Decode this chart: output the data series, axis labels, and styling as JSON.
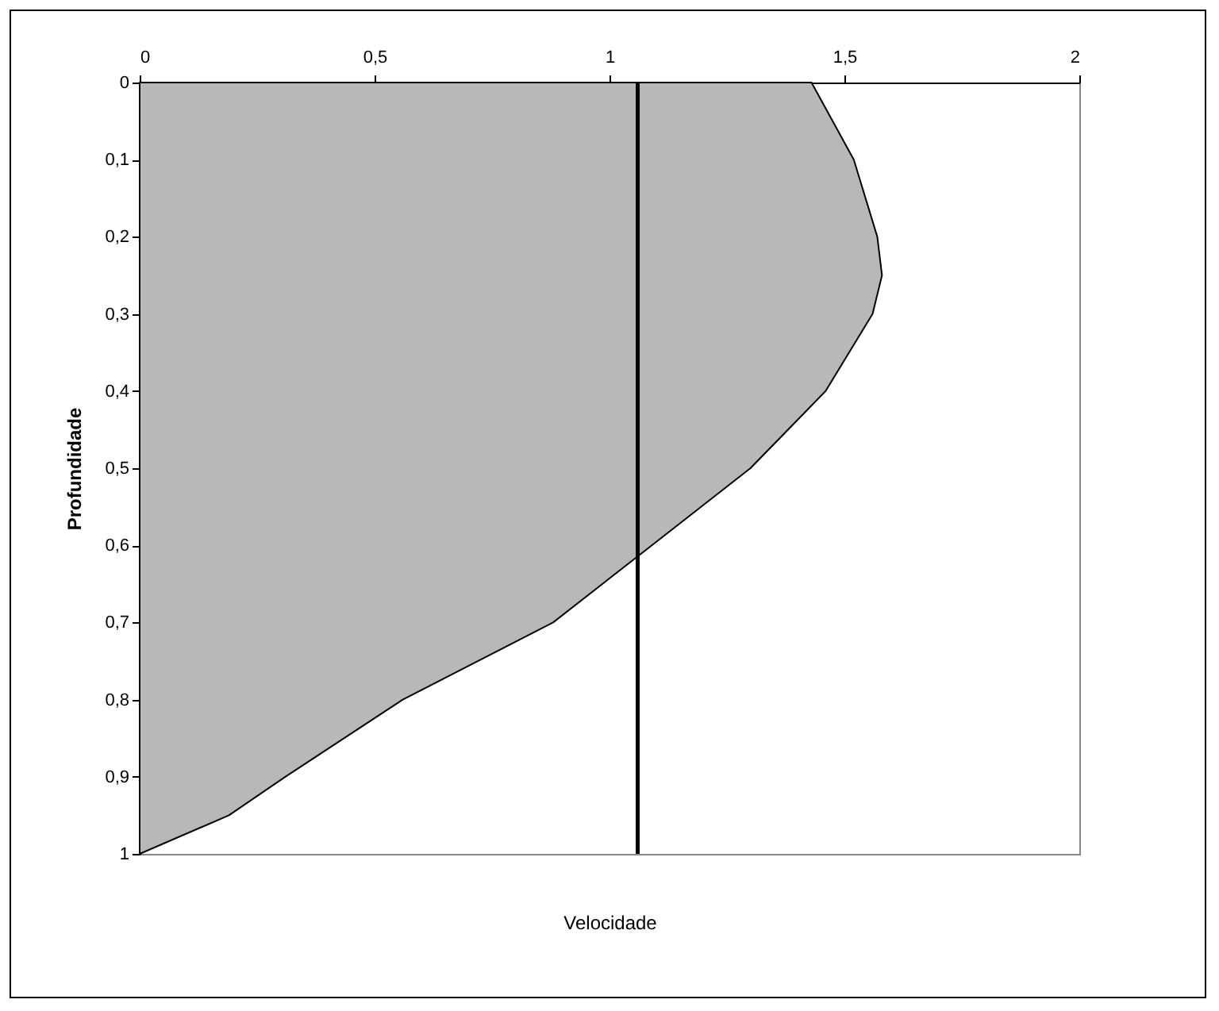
{
  "chart_data": {
    "type": "area",
    "orientation": "horizontal",
    "xlabel": "Velocidade",
    "ylabel": "Profundidade",
    "x": [
      0,
      0.1,
      0.2,
      0.25,
      0.3,
      0.4,
      0.5,
      0.6,
      0.7,
      0.8,
      0.9,
      0.95,
      1
    ],
    "values": [
      1.43,
      1.52,
      1.57,
      1.58,
      1.56,
      1.46,
      1.3,
      1.09,
      0.88,
      0.56,
      0.31,
      0.19,
      0
    ],
    "color": "#b8b8b8",
    "xlim": [
      0,
      2
    ],
    "xticks": [
      0,
      {
        "value": 0.5,
        "label": "0,5"
      },
      1,
      {
        "value": 1.5,
        "label": "1,5"
      },
      2
    ],
    "ylim": [
      1,
      0
    ],
    "yticks": [
      0,
      {
        "value": 0.1,
        "label": "0,1"
      },
      {
        "value": 0.2,
        "label": "0,2"
      },
      {
        "value": 0.3,
        "label": "0,3"
      },
      {
        "value": 0.4,
        "label": "0,4"
      },
      {
        "value": 0.5,
        "label": "0,5"
      },
      {
        "value": 0.6,
        "label": "0,6"
      },
      {
        "value": 0.7,
        "label": "0,7"
      },
      {
        "value": 0.8,
        "label": "0,8"
      },
      {
        "value": 0.9,
        "label": "0,9"
      },
      1
    ],
    "ref_lines": [
      {
        "axis": "x",
        "value": 1.06,
        "color": "#000000"
      }
    ],
    "grid": false
  }
}
